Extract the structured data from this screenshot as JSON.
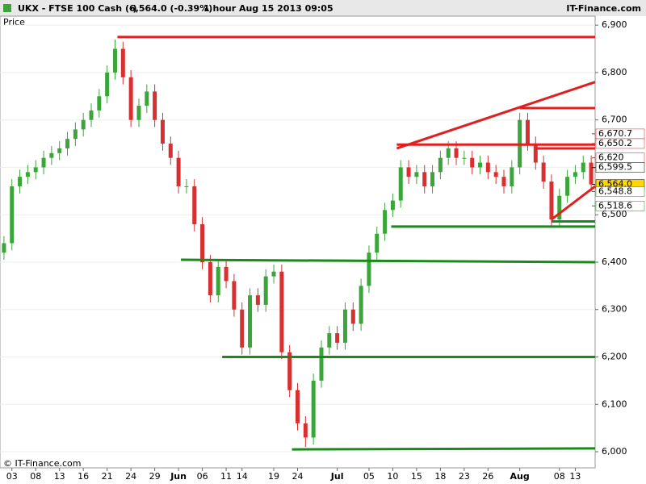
{
  "chart_data": {
    "type": "candlestick",
    "header": {
      "symbol": "UKX - FTSE 100 Cash (-)",
      "quote": "6,564.0 (-0.39%)",
      "period": "1 hour  Aug 15 2013 09:05",
      "brand": "IT-Finance.com"
    },
    "y_label": "Price",
    "footer": "© IT-Finance.com",
    "open": [
      6420,
      6440,
      6560,
      6580,
      6590,
      6600,
      6620,
      6630,
      6640,
      6660,
      6680,
      6700,
      6720,
      6750,
      6800,
      6850,
      6790,
      6700,
      6730,
      6760,
      6700,
      6650,
      6620,
      6560,
      6560,
      6480,
      6400,
      6330,
      6390,
      6360,
      6300,
      6220,
      6330,
      6310,
      6370,
      6380,
      6210,
      6130,
      6060,
      6030,
      6150,
      6220,
      6250,
      6230,
      6300,
      6270,
      6350,
      6420,
      6460,
      6510,
      6530,
      6600,
      6580,
      6590,
      6560,
      6590,
      6620,
      6640,
      6620,
      6620,
      6600,
      6610,
      6590,
      6580,
      6560,
      6600,
      6700,
      6650,
      6610,
      6570,
      6490,
      6540,
      6580,
      6590,
      6610
    ],
    "high": [
      6455,
      6575,
      6595,
      6605,
      6615,
      6635,
      6645,
      6655,
      6675,
      6695,
      6715,
      6735,
      6765,
      6815,
      6870,
      6865,
      6805,
      6745,
      6775,
      6775,
      6715,
      6665,
      6635,
      6575,
      6575,
      6495,
      6415,
      6405,
      6405,
      6375,
      6315,
      6345,
      6345,
      6385,
      6395,
      6395,
      6225,
      6145,
      6075,
      6165,
      6235,
      6265,
      6265,
      6315,
      6315,
      6365,
      6435,
      6475,
      6525,
      6545,
      6615,
      6615,
      6605,
      6605,
      6605,
      6635,
      6655,
      6655,
      6635,
      6635,
      6625,
      6625,
      6605,
      6595,
      6615,
      6715,
      6715,
      6665,
      6625,
      6585,
      6555,
      6595,
      6605,
      6625,
      6625
    ],
    "low": [
      6405,
      6425,
      6545,
      6565,
      6575,
      6585,
      6605,
      6615,
      6625,
      6645,
      6665,
      6685,
      6705,
      6735,
      6785,
      6775,
      6685,
      6685,
      6715,
      6685,
      6635,
      6605,
      6545,
      6545,
      6465,
      6385,
      6315,
      6315,
      6345,
      6285,
      6205,
      6205,
      6295,
      6295,
      6355,
      6195,
      6115,
      6045,
      6010,
      6015,
      6135,
      6205,
      6215,
      6215,
      6255,
      6255,
      6335,
      6405,
      6445,
      6495,
      6515,
      6565,
      6565,
      6545,
      6545,
      6575,
      6605,
      6605,
      6605,
      6585,
      6585,
      6575,
      6565,
      6545,
      6545,
      6585,
      6635,
      6595,
      6555,
      6475,
      6475,
      6525,
      6565,
      6575,
      6549
    ],
    "close": [
      6440,
      6560,
      6580,
      6590,
      6600,
      6620,
      6630,
      6640,
      6660,
      6680,
      6700,
      6720,
      6750,
      6800,
      6850,
      6790,
      6700,
      6730,
      6760,
      6700,
      6650,
      6620,
      6560,
      6560,
      6480,
      6400,
      6330,
      6390,
      6360,
      6300,
      6220,
      6330,
      6310,
      6370,
      6380,
      6210,
      6130,
      6060,
      6030,
      6150,
      6220,
      6250,
      6230,
      6300,
      6270,
      6350,
      6420,
      6460,
      6510,
      6530,
      6600,
      6580,
      6590,
      6560,
      6590,
      6620,
      6640,
      6620,
      6620,
      6600,
      6610,
      6590,
      6580,
      6560,
      6600,
      6700,
      6650,
      6610,
      6570,
      6490,
      6540,
      6580,
      6590,
      6610,
      6564
    ],
    "up_color": "#3aa63a",
    "down_color": "#d83030",
    "xlim": [
      -0.5,
      74.5
    ],
    "xticks": [
      {
        "value": 1,
        "label": "03"
      },
      {
        "value": 4,
        "label": "08"
      },
      {
        "value": 7,
        "label": "13"
      },
      {
        "value": 10,
        "label": "16"
      },
      {
        "value": 13,
        "label": "21"
      },
      {
        "value": 16,
        "label": "24"
      },
      {
        "value": 19,
        "label": "29"
      },
      {
        "value": 22,
        "label": "Jun"
      },
      {
        "value": 25,
        "label": "06"
      },
      {
        "value": 28,
        "label": "11"
      },
      {
        "value": 30,
        "label": "14"
      },
      {
        "value": 34,
        "label": "19"
      },
      {
        "value": 37,
        "label": "24"
      },
      {
        "value": 42,
        "label": "Jul"
      },
      {
        "value": 46,
        "label": "05"
      },
      {
        "value": 49,
        "label": "10"
      },
      {
        "value": 52,
        "label": "15"
      },
      {
        "value": 55,
        "label": "18"
      },
      {
        "value": 58,
        "label": "23"
      },
      {
        "value": 61,
        "label": "26"
      },
      {
        "value": 65,
        "label": "Aug"
      },
      {
        "value": 70,
        "label": "08"
      },
      {
        "value": 72,
        "label": "13"
      }
    ],
    "ylim": [
      5966,
      6919
    ],
    "yticks": [
      {
        "value": 6000,
        "label": "6,000"
      },
      {
        "value": 6100,
        "label": "6,100"
      },
      {
        "value": 6200,
        "label": "6,200"
      },
      {
        "value": 6300,
        "label": "6,300"
      },
      {
        "value": 6400,
        "label": "6,400"
      },
      {
        "value": 6500,
        "label": "6,500"
      },
      {
        "value": 6600,
        "label": "6,600"
      },
      {
        "value": 6700,
        "label": "6,700"
      },
      {
        "value": 6800,
        "label": "6,800"
      },
      {
        "value": 6900,
        "label": "6,900"
      }
    ],
    "lines": [
      {
        "x": [
          14.3,
          74.5
        ],
        "y": [
          6875,
          6875
        ],
        "color": "#e02020"
      },
      {
        "x": [
          49.5,
          74.5
        ],
        "y": [
          6648,
          6648
        ],
        "color": "#e02020"
      },
      {
        "x": [
          49.5,
          74.5
        ],
        "y": [
          6640,
          6780
        ],
        "color": "#e02020"
      },
      {
        "x": [
          65,
          74.5
        ],
        "y": [
          6725,
          6725
        ],
        "color": "#e02020"
      },
      {
        "x": [
          67,
          74.5
        ],
        "y": [
          6640,
          6640
        ],
        "color": "#e02020"
      },
      {
        "x": [
          69,
          74.5
        ],
        "y": [
          6490,
          6560
        ],
        "color": "#e02020"
      },
      {
        "x": [
          69,
          74.5
        ],
        "y": [
          6486,
          6486
        ],
        "color": "#1a8a1a"
      },
      {
        "x": [
          48.8,
          74.5
        ],
        "y": [
          6475,
          6475
        ],
        "color": "#1a8a1a"
      },
      {
        "x": [
          22.3,
          74.5
        ],
        "y": [
          6405,
          6400
        ],
        "color": "#1a8a1a"
      },
      {
        "x": [
          27.5,
          74.5
        ],
        "y": [
          6200,
          6200
        ],
        "color": "#1a8a1a"
      },
      {
        "x": [
          36.3,
          74.5
        ],
        "y": [
          6005,
          6007
        ],
        "color": "#1a8a1a"
      }
    ],
    "price_markers": [
      {
        "value": 6670.7,
        "label": "6,670.7",
        "color": "#d02020"
      },
      {
        "value": 6650.2,
        "label": "6,650.2",
        "color": "#d02020"
      },
      {
        "value": 6620,
        "label": "6,620",
        "color": "#d02020"
      },
      {
        "value": 6599.5,
        "label": "6,599.5",
        "color": "#000000"
      },
      {
        "value": 6564.0,
        "label": "6,564.0",
        "color": "#000000",
        "highlight": "#ffd700"
      },
      {
        "value": 6548.8,
        "label": "6,548.8",
        "color": "#1a8a1a"
      },
      {
        "value": 6518.6,
        "label": "6,518.6",
        "color": "#1a8a1a"
      }
    ]
  }
}
